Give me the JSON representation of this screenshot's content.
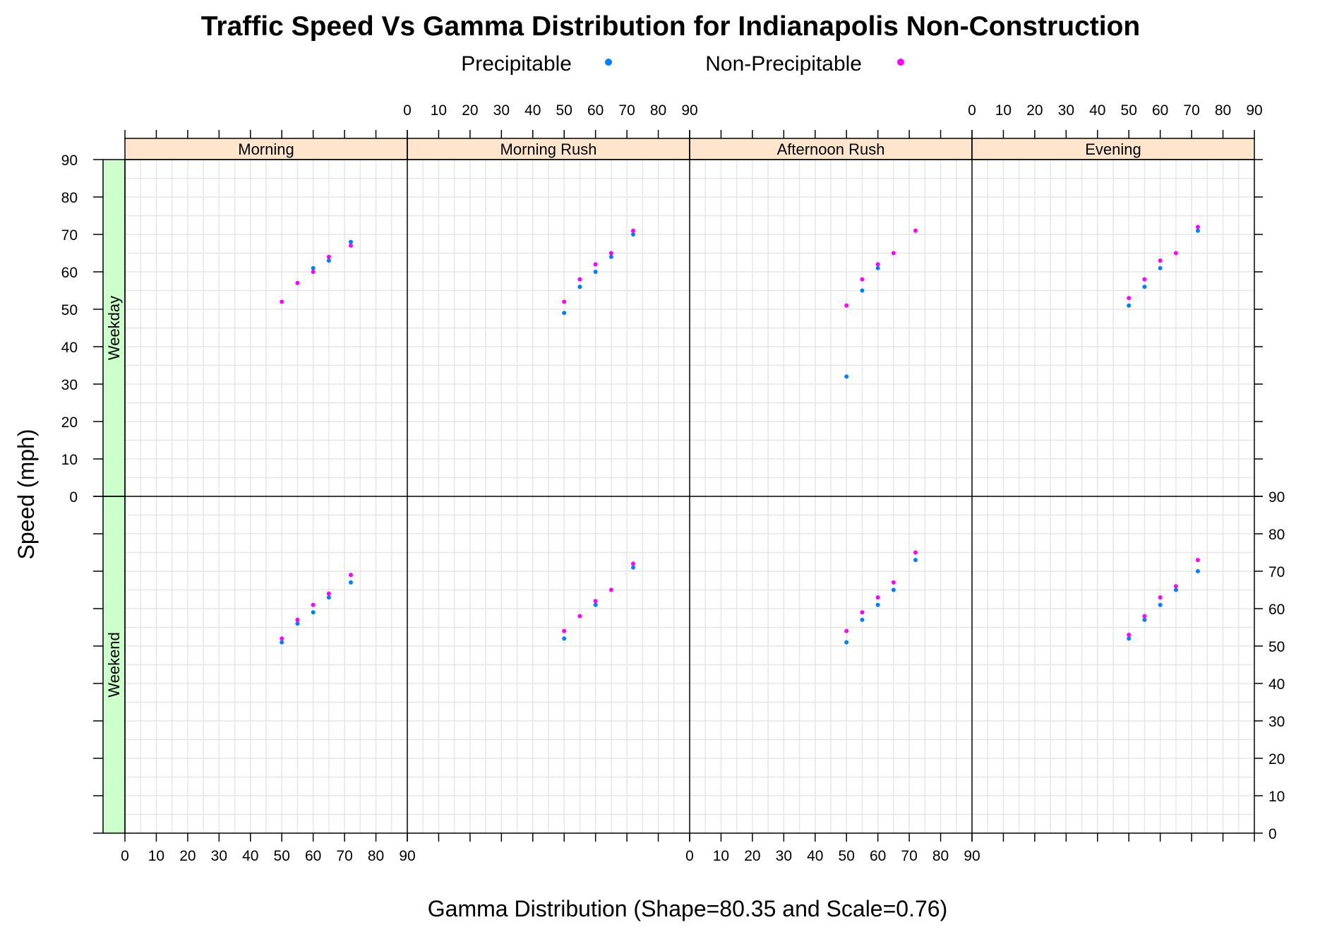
{
  "chart_data": {
    "type": "scatter",
    "title": "Traffic Speed Vs Gamma Distribution for Indianapolis Non-Construction",
    "xlabel": "Gamma Distribution (Shape=80.35 and Scale=0.76)",
    "ylabel": "Speed (mph)",
    "xlim": [
      0,
      90
    ],
    "ylim": [
      0,
      90
    ],
    "ticks": [
      0,
      10,
      20,
      30,
      40,
      50,
      60,
      70,
      80,
      90
    ],
    "grid": true,
    "legend": {
      "position": "top",
      "entries": [
        {
          "name": "Precipitable",
          "color": "#0080ff"
        },
        {
          "name": "Non-Precipitable",
          "color": "#ff00ff"
        }
      ]
    },
    "columns": [
      "Morning",
      "Morning Rush",
      "Afternoon Rush",
      "Evening"
    ],
    "rows": [
      "Weekday",
      "Weekend"
    ],
    "strip_colors": {
      "columns": "#ffe5cc",
      "rows": "#ccffcc"
    },
    "panels": [
      {
        "column": "Morning",
        "row": "Weekday",
        "series": [
          {
            "name": "Precipitable",
            "x": [
              60,
              65,
              72
            ],
            "y": [
              61,
              63,
              68
            ]
          },
          {
            "name": "Non-Precipitable",
            "x": [
              50,
              55,
              60,
              65,
              72
            ],
            "y": [
              52,
              57,
              60,
              64,
              67
            ]
          }
        ]
      },
      {
        "column": "Morning Rush",
        "row": "Weekday",
        "series": [
          {
            "name": "Precipitable",
            "x": [
              50,
              55,
              60,
              65,
              72
            ],
            "y": [
              49,
              56,
              60,
              64,
              70
            ]
          },
          {
            "name": "Non-Precipitable",
            "x": [
              50,
              55,
              60,
              65,
              72
            ],
            "y": [
              52,
              58,
              62,
              65,
              71
            ]
          }
        ]
      },
      {
        "column": "Afternoon Rush",
        "row": "Weekday",
        "series": [
          {
            "name": "Precipitable",
            "x": [
              50,
              55,
              60
            ],
            "y": [
              32,
              55,
              61
            ]
          },
          {
            "name": "Non-Precipitable",
            "x": [
              50,
              55,
              60,
              65,
              72
            ],
            "y": [
              51,
              58,
              62,
              65,
              71
            ]
          }
        ]
      },
      {
        "column": "Evening",
        "row": "Weekday",
        "series": [
          {
            "name": "Precipitable",
            "x": [
              50,
              55,
              60,
              72
            ],
            "y": [
              51,
              56,
              61,
              71
            ]
          },
          {
            "name": "Non-Precipitable",
            "x": [
              50,
              55,
              60,
              65,
              72
            ],
            "y": [
              53,
              58,
              63,
              65,
              72
            ]
          }
        ]
      },
      {
        "column": "Morning",
        "row": "Weekend",
        "series": [
          {
            "name": "Precipitable",
            "x": [
              50,
              55,
              60,
              65,
              72
            ],
            "y": [
              51,
              56,
              59,
              63,
              67
            ]
          },
          {
            "name": "Non-Precipitable",
            "x": [
              50,
              55,
              60,
              65,
              72
            ],
            "y": [
              52,
              57,
              61,
              64,
              69
            ]
          }
        ]
      },
      {
        "column": "Morning Rush",
        "row": "Weekend",
        "series": [
          {
            "name": "Precipitable",
            "x": [
              50,
              60,
              72
            ],
            "y": [
              52,
              61,
              71
            ]
          },
          {
            "name": "Non-Precipitable",
            "x": [
              50,
              55,
              60,
              65,
              72
            ],
            "y": [
              54,
              58,
              62,
              65,
              72
            ]
          }
        ]
      },
      {
        "column": "Afternoon Rush",
        "row": "Weekend",
        "series": [
          {
            "name": "Precipitable",
            "x": [
              50,
              55,
              60,
              65,
              72
            ],
            "y": [
              51,
              57,
              61,
              65,
              73
            ]
          },
          {
            "name": "Non-Precipitable",
            "x": [
              50,
              55,
              60,
              65,
              72
            ],
            "y": [
              54,
              59,
              63,
              67,
              75
            ]
          }
        ]
      },
      {
        "column": "Evening",
        "row": "Weekend",
        "series": [
          {
            "name": "Precipitable",
            "x": [
              50,
              55,
              60,
              65,
              72
            ],
            "y": [
              52,
              57,
              61,
              65,
              70
            ]
          },
          {
            "name": "Non-Precipitable",
            "x": [
              50,
              55,
              60,
              65,
              72
            ],
            "y": [
              53,
              58,
              63,
              66,
              73
            ]
          }
        ]
      }
    ]
  }
}
